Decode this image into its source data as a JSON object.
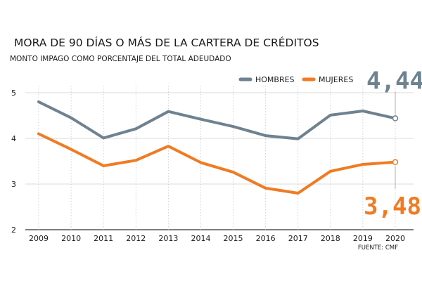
{
  "chart_data": {
    "type": "line",
    "title": "MORA DE 90 DÍAS O MÁS DE LA CARTERA DE CRÉDITOS",
    "subtitle": "MONTO IMPAGO COMO PORCENTAJE DEL TOTAL ADEUDADO",
    "source": "FUENTE: CMF",
    "x": [
      "2009",
      "2010",
      "2011",
      "2012",
      "2013",
      "2014",
      "2015",
      "2016",
      "2017",
      "2018",
      "2019",
      "2020"
    ],
    "yticks": [
      "2",
      "3",
      "4",
      "5"
    ],
    "ylim": [
      2,
      5
    ],
    "series": [
      {
        "name": "HOMBRES",
        "color": "#6e8290",
        "values": [
          4.8,
          4.45,
          4.01,
          4.21,
          4.59,
          4.42,
          4.26,
          4.06,
          3.99,
          4.51,
          4.6,
          4.44
        ],
        "end_label": "4,44"
      },
      {
        "name": "MUJERES",
        "color": "#f07b22",
        "values": [
          4.1,
          3.76,
          3.4,
          3.52,
          3.83,
          3.47,
          3.26,
          2.91,
          2.8,
          3.28,
          3.43,
          3.48
        ],
        "end_label": "3,48"
      }
    ]
  }
}
